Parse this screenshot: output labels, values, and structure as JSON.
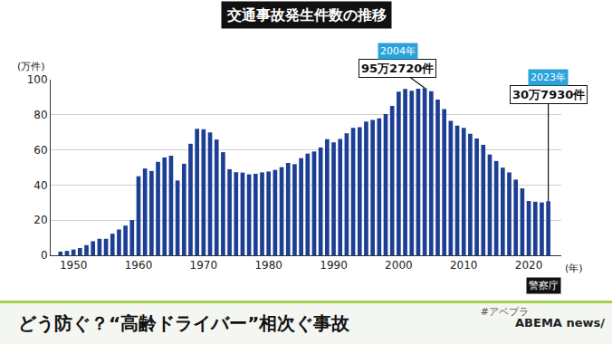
{
  "chart_data": {
    "type": "bar",
    "title": "交通事故発生件数の推移",
    "xlabel": "(年)",
    "ylabel": "(万件)",
    "x": [
      1948,
      1949,
      1950,
      1951,
      1952,
      1953,
      1954,
      1955,
      1956,
      1957,
      1958,
      1959,
      1960,
      1961,
      1962,
      1963,
      1964,
      1965,
      1966,
      1967,
      1968,
      1969,
      1970,
      1971,
      1972,
      1973,
      1974,
      1975,
      1976,
      1977,
      1978,
      1979,
      1980,
      1981,
      1982,
      1983,
      1984,
      1985,
      1986,
      1987,
      1988,
      1989,
      1990,
      1991,
      1992,
      1993,
      1994,
      1995,
      1996,
      1997,
      1998,
      1999,
      2000,
      2001,
      2002,
      2003,
      2004,
      2005,
      2006,
      2007,
      2008,
      2009,
      2010,
      2011,
      2012,
      2013,
      2014,
      2015,
      2016,
      2017,
      2018,
      2019,
      2020,
      2021,
      2022,
      2023
    ],
    "values": [
      2.1,
      2.5,
      3.3,
      4.1,
      5.8,
      8.0,
      9.4,
      9.4,
      12.3,
      14.7,
      16.9,
      20.1,
      45.0,
      49.4,
      48.0,
      53.2,
      55.7,
      56.7,
      42.6,
      52.1,
      63.5,
      72.1,
      71.8,
      70.0,
      65.9,
      58.7,
      49.0,
      47.3,
      47.1,
      46.1,
      46.4,
      47.2,
      47.7,
      48.6,
      50.2,
      52.6,
      51.9,
      55.3,
      57.9,
      59.1,
      61.4,
      66.1,
      64.3,
      66.2,
      69.5,
      72.5,
      72.9,
      76.2,
      77.1,
      78.0,
      80.4,
      85.0,
      93.2,
      94.7,
      93.7,
      94.8,
      95.272,
      93.4,
      88.7,
      83.3,
      76.6,
      73.8,
      72.6,
      69.2,
      66.5,
      62.9,
      57.4,
      53.7,
      49.9,
      47.2,
      43.1,
      38.1,
      30.9,
      30.5,
      30.1,
      30.793
    ],
    "color": "#1c3f94",
    "xlim": [
      1946.5,
      2025
    ],
    "xticks": [
      1950,
      1960,
      1970,
      1980,
      1990,
      2000,
      2010,
      2020
    ],
    "ylim": [
      0,
      100
    ],
    "yticks": [
      0,
      20,
      40,
      60,
      80,
      100
    ],
    "grid": true,
    "annotations": [
      {
        "label": "2004年",
        "value": "95万2720件",
        "x": 2004,
        "y": 95.272
      },
      {
        "label": "2023年",
        "value": "30万7930件",
        "x": 2023,
        "y": 30.793
      },
      {
        "label": "警察庁"
      }
    ]
  },
  "caption": "どう防ぐ？“高齢ドライバー”相次ぐ事故",
  "hashtag": "#アベプラ",
  "logo": "ABEMA news/"
}
